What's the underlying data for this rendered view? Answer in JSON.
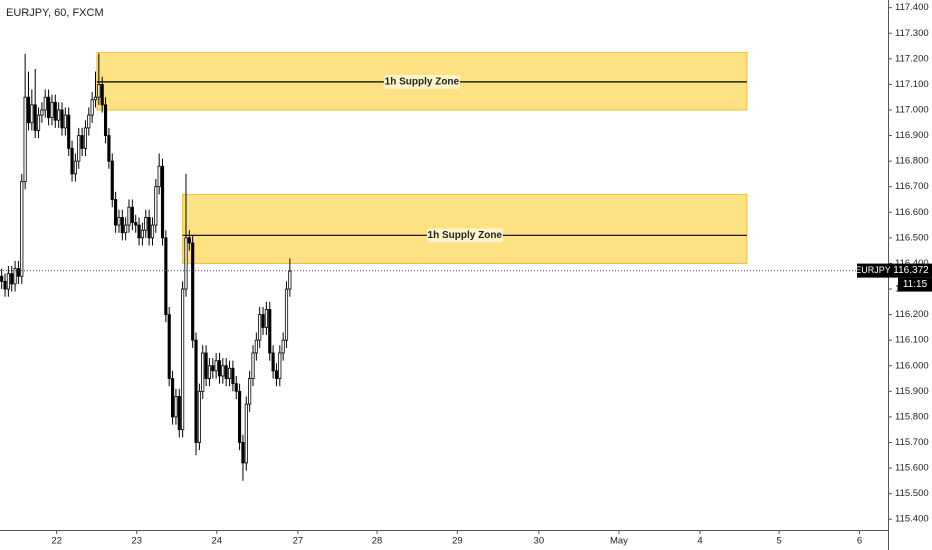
{
  "chart_data": {
    "type": "candlestick",
    "title": "EURJPY, 60, FXCM",
    "open": [
      116.35,
      116.33,
      116.3,
      116.36,
      116.32,
      116.38,
      116.35,
      116.72,
      117.05,
      116.95,
      117.02,
      116.92,
      116.98,
      117.0,
      117.05,
      116.97,
      117.03,
      116.96,
      117.0,
      116.93,
      116.98,
      116.85,
      116.75,
      116.8,
      116.9,
      116.85,
      116.93,
      116.98,
      117.04,
      117.05,
      117.1,
      117.02,
      116.9,
      116.8,
      116.65,
      116.55,
      116.58,
      116.52,
      116.55,
      116.62,
      116.56,
      116.55,
      116.5,
      116.53,
      116.58,
      116.5,
      116.55,
      116.7,
      116.78,
      116.5,
      116.2,
      115.95,
      115.8,
      115.88,
      115.75,
      116.3,
      116.5,
      116.48,
      116.1,
      115.7,
      115.9,
      116.05,
      115.95,
      116.0,
      115.98,
      116.02,
      115.96,
      116.0,
      115.95,
      115.99,
      115.93,
      115.9,
      115.7,
      115.62,
      115.85,
      115.95,
      116.05,
      116.1,
      116.2,
      116.15,
      116.22,
      116.05,
      115.98,
      115.95,
      116.05,
      116.1,
      116.3
    ],
    "high": [
      116.38,
      116.36,
      116.39,
      116.39,
      116.41,
      116.41,
      116.75,
      117.22,
      117.15,
      117.08,
      117.16,
      117.01,
      117.03,
      117.08,
      117.08,
      117.06,
      117.06,
      117.03,
      117.03,
      117.01,
      117.01,
      116.88,
      116.83,
      116.93,
      116.93,
      116.96,
      117.01,
      117.07,
      117.15,
      117.22,
      117.13,
      117.05,
      116.93,
      116.83,
      116.68,
      116.61,
      116.61,
      116.58,
      116.65,
      116.65,
      116.59,
      116.58,
      116.56,
      116.61,
      116.61,
      116.58,
      116.73,
      116.83,
      116.81,
      116.53,
      116.23,
      115.98,
      115.91,
      115.91,
      116.33,
      116.75,
      116.53,
      116.51,
      116.13,
      115.93,
      116.08,
      116.08,
      116.03,
      116.03,
      116.05,
      116.05,
      116.03,
      116.03,
      116.02,
      116.02,
      115.96,
      115.93,
      115.73,
      115.88,
      115.98,
      116.08,
      116.13,
      116.23,
      116.23,
      116.25,
      116.25,
      116.08,
      116.01,
      116.08,
      116.13,
      116.33,
      116.42
    ],
    "low": [
      116.3,
      116.27,
      116.27,
      116.29,
      116.29,
      116.32,
      116.32,
      116.69,
      116.92,
      116.92,
      116.89,
      116.89,
      116.95,
      116.97,
      116.94,
      116.94,
      116.93,
      116.93,
      116.9,
      116.9,
      116.82,
      116.72,
      116.72,
      116.77,
      116.82,
      116.82,
      116.9,
      116.95,
      117.01,
      117.02,
      116.99,
      116.87,
      116.77,
      116.62,
      116.52,
      116.52,
      116.49,
      116.49,
      116.52,
      116.53,
      116.52,
      116.47,
      116.47,
      116.5,
      116.47,
      116.47,
      116.52,
      116.67,
      116.47,
      116.17,
      115.92,
      115.77,
      115.77,
      115.72,
      115.72,
      116.27,
      116.45,
      116.07,
      115.65,
      115.67,
      115.87,
      115.92,
      115.92,
      115.95,
      115.95,
      115.93,
      115.93,
      115.92,
      115.92,
      115.9,
      115.87,
      115.67,
      115.55,
      115.59,
      115.82,
      115.92,
      116.02,
      116.07,
      116.12,
      116.12,
      116.02,
      115.95,
      115.92,
      115.92,
      116.02,
      116.07,
      116.27
    ],
    "close": [
      116.33,
      116.3,
      116.36,
      116.32,
      116.38,
      116.35,
      116.72,
      117.05,
      116.95,
      117.02,
      116.92,
      116.98,
      117.0,
      117.05,
      116.97,
      117.03,
      116.96,
      117.0,
      116.93,
      116.98,
      116.85,
      116.75,
      116.8,
      116.9,
      116.85,
      116.93,
      116.98,
      117.04,
      117.05,
      117.1,
      117.02,
      116.9,
      116.8,
      116.65,
      116.55,
      116.58,
      116.52,
      116.55,
      116.62,
      116.56,
      116.55,
      116.5,
      116.53,
      116.58,
      116.5,
      116.55,
      116.7,
      116.78,
      116.5,
      116.2,
      115.95,
      115.8,
      115.88,
      115.75,
      116.3,
      116.5,
      116.48,
      116.1,
      115.7,
      115.9,
      116.05,
      115.95,
      116.0,
      115.98,
      116.02,
      115.96,
      116.0,
      115.95,
      115.99,
      115.93,
      115.9,
      115.7,
      115.62,
      115.85,
      115.95,
      116.05,
      116.1,
      116.2,
      116.15,
      116.22,
      116.05,
      115.98,
      115.95,
      116.05,
      116.1,
      116.3,
      116.37
    ],
    "up_color": "#ffffff",
    "down_color": "#000000",
    "xlim": [
      -0.5,
      264.5
    ],
    "xticks": [
      {
        "value": 16.4,
        "label": "22"
      },
      {
        "value": 40.3,
        "label": "23"
      },
      {
        "value": 64.2,
        "label": "24"
      },
      {
        "value": 88.4,
        "label": "27"
      },
      {
        "value": 112,
        "label": "28"
      },
      {
        "value": 136,
        "label": "29"
      },
      {
        "value": 160.3,
        "label": "30"
      },
      {
        "value": 184.2,
        "label": "May"
      },
      {
        "value": 208.4,
        "label": "4"
      },
      {
        "value": 232,
        "label": "5"
      },
      {
        "value": 256,
        "label": "6"
      }
    ],
    "ylim": [
      115.35,
      117.43
    ],
    "yticks": [
      {
        "value": 115.4,
        "label": "115.400"
      },
      {
        "value": 115.5,
        "label": "115.500"
      },
      {
        "value": 115.6,
        "label": "115.600"
      },
      {
        "value": 115.7,
        "label": "115.700"
      },
      {
        "value": 115.8,
        "label": "115.800"
      },
      {
        "value": 115.9,
        "label": "115.900"
      },
      {
        "value": 116.0,
        "label": "116.000"
      },
      {
        "value": 116.1,
        "label": "116.100"
      },
      {
        "value": 116.2,
        "label": "116.200"
      },
      {
        "value": 116.3,
        "label": "116.300"
      },
      {
        "value": 116.4,
        "label": "116.400"
      },
      {
        "value": 116.5,
        "label": "116.500"
      },
      {
        "value": 116.6,
        "label": "116.600"
      },
      {
        "value": 116.7,
        "label": "116.700"
      },
      {
        "value": 116.8,
        "label": "116.800"
      },
      {
        "value": 116.9,
        "label": "116.900"
      },
      {
        "value": 117.0,
        "label": "117.000"
      },
      {
        "value": 117.1,
        "label": "117.100"
      },
      {
        "value": 117.2,
        "label": "117.200"
      },
      {
        "value": 117.3,
        "label": "117.300"
      },
      {
        "value": 117.4,
        "label": "117.400"
      }
    ],
    "zones": [
      {
        "label": "1h Supply Zone",
        "x": [
          28.4,
          222.4
        ],
        "y": [
          117.0,
          117.225
        ],
        "level": 117.11,
        "color": "#fddc6c"
      },
      {
        "label": "1h Supply Zone",
        "x": [
          54,
          222.4
        ],
        "y": [
          116.4,
          116.67
        ],
        "level": 116.51,
        "color": "#fddc6c"
      }
    ],
    "last_price": {
      "symbol": "EURJPY",
      "value": 116.372,
      "countdown": "11:15"
    }
  }
}
